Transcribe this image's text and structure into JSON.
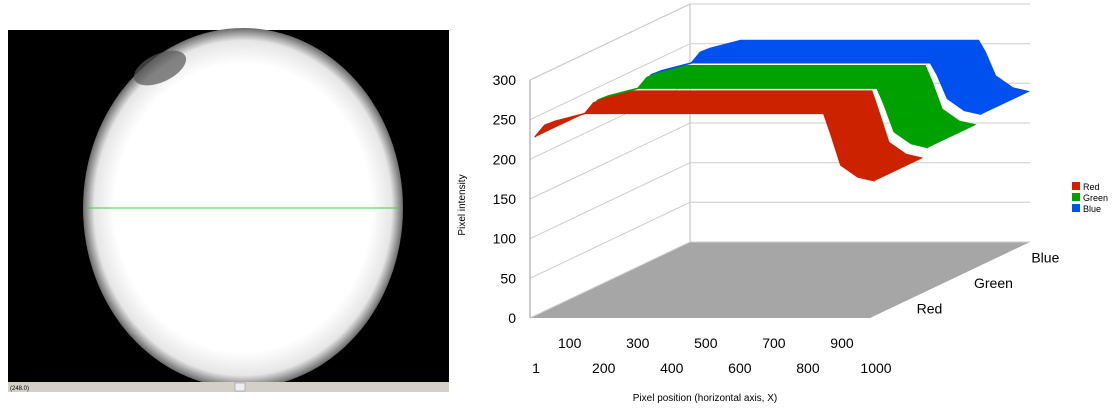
{
  "image_status": "(248.0)",
  "chart_data": {
    "type": "area3d",
    "y_label": "Pixel intensity",
    "x_label": "Pixel position (horizontal axis, X)",
    "x": [
      1,
      30,
      60,
      150,
      500,
      850,
      870,
      900,
      950,
      1000
    ],
    "xlim": [
      1,
      1000
    ],
    "xticks": [
      1,
      100,
      200,
      300,
      400,
      500,
      600,
      700,
      800,
      900,
      1000
    ],
    "ylim": [
      0,
      300
    ],
    "yticks": [
      0,
      50,
      100,
      150,
      200,
      250,
      300
    ],
    "grid": true,
    "legend": "right",
    "series": [
      {
        "name": "Red",
        "color": "#cc2200",
        "values": [
          225,
          240,
          245,
          255,
          255,
          255,
          230,
          190,
          175,
          170
        ]
      },
      {
        "name": "Green",
        "color": "#00a000",
        "values": [
          225,
          240,
          245,
          255,
          255,
          255,
          235,
          200,
          185,
          180
        ]
      },
      {
        "name": "Blue",
        "color": "#0050f0",
        "values": [
          225,
          240,
          245,
          255,
          255,
          255,
          240,
          210,
          195,
          190
        ]
      }
    ]
  }
}
